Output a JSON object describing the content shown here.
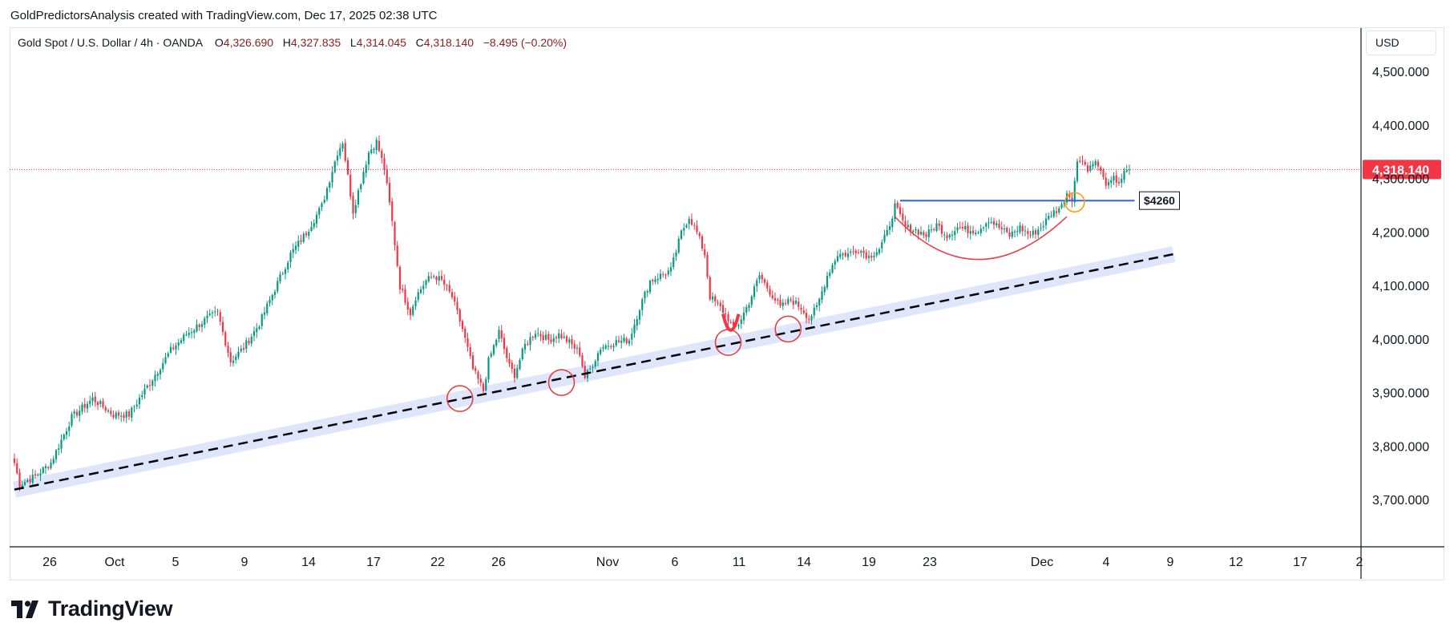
{
  "caption": "GoldPredictorsAnalysis created with TradingView.com, Dec 17, 2025 02:38 UTC",
  "symbol": {
    "name": "Gold Spot / U.S. Dollar",
    "interval": "4h",
    "exchange": "OANDA",
    "open_label": "O",
    "open": "4,326.690",
    "high_label": "H",
    "high": "4,327.835",
    "low_label": "L",
    "low": "4,314.045",
    "close_label": "C",
    "close": "4,318.140",
    "change": "−8.495 (−0.20%)"
  },
  "currency": "USD",
  "brand": "TradingView",
  "colors": {
    "up": "#089981",
    "down": "#f23645",
    "price_tag": "#f23645",
    "resistance": "#2962ff",
    "cup": "#f23645",
    "trend_band": "#dfe6fb",
    "trend_line": "#000000",
    "touch_circle": "#e53935",
    "breakout_circle": "#ff9800"
  },
  "chart_data": {
    "type": "candlestick",
    "interval": "4h",
    "ylim": [
      3600,
      4560
    ],
    "y_ticks": [
      3700,
      3800,
      3900,
      4000,
      4100,
      4200,
      4300,
      4400,
      4500
    ],
    "y_tick_labels": [
      "3,700.000",
      "3,800.000",
      "3,900.000",
      "4,000.000",
      "4,100.000",
      "4,200.000",
      "4,300.000",
      "4,400.000",
      "4,500.000"
    ],
    "x_tick_labels": [
      "26",
      "Oct",
      "5",
      "9",
      "14",
      "17",
      "22",
      "26",
      "Nov",
      "6",
      "11",
      "14",
      "19",
      "23",
      "Dec",
      "4",
      "9",
      "12",
      "17",
      "2"
    ],
    "last_price": 4318.14,
    "last_price_label": "4,318.140",
    "anchors": [
      [
        0,
        3770
      ],
      [
        2,
        3730
      ],
      [
        8,
        3745
      ],
      [
        14,
        3770
      ],
      [
        22,
        3855
      ],
      [
        30,
        3890
      ],
      [
        38,
        3860
      ],
      [
        44,
        3860
      ],
      [
        52,
        3920
      ],
      [
        60,
        3980
      ],
      [
        66,
        4010
      ],
      [
        74,
        4040
      ],
      [
        78,
        4050
      ],
      [
        83,
        3960
      ],
      [
        88,
        3985
      ],
      [
        94,
        4030
      ],
      [
        100,
        4095
      ],
      [
        106,
        4160
      ],
      [
        112,
        4200
      ],
      [
        118,
        4250
      ],
      [
        124,
        4350
      ],
      [
        126,
        4370
      ],
      [
        130,
        4240
      ],
      [
        134,
        4315
      ],
      [
        136,
        4350
      ],
      [
        139,
        4370
      ],
      [
        142,
        4320
      ],
      [
        145,
        4220
      ],
      [
        148,
        4100
      ],
      [
        152,
        4050
      ],
      [
        154,
        4080
      ],
      [
        158,
        4110
      ],
      [
        161,
        4120
      ],
      [
        164,
        4110
      ],
      [
        168,
        4080
      ],
      [
        172,
        4020
      ],
      [
        176,
        3945
      ],
      [
        180,
        3905
      ],
      [
        182,
        3960
      ],
      [
        186,
        4015
      ],
      [
        190,
        3950
      ],
      [
        192,
        3935
      ],
      [
        196,
        3990
      ],
      [
        200,
        4015
      ],
      [
        205,
        4000
      ],
      [
        209,
        4010
      ],
      [
        213,
        3995
      ],
      [
        217,
        3975
      ],
      [
        219,
        3930
      ],
      [
        221,
        3945
      ],
      [
        225,
        3985
      ],
      [
        230,
        3995
      ],
      [
        236,
        4000
      ],
      [
        240,
        4060
      ],
      [
        244,
        4110
      ],
      [
        248,
        4120
      ],
      [
        252,
        4130
      ],
      [
        256,
        4200
      ],
      [
        259,
        4230
      ],
      [
        262,
        4200
      ],
      [
        265,
        4160
      ],
      [
        267,
        4080
      ],
      [
        271,
        4060
      ],
      [
        274,
        4040
      ],
      [
        276,
        4020
      ],
      [
        278,
        4030
      ],
      [
        282,
        4070
      ],
      [
        286,
        4120
      ],
      [
        290,
        4090
      ],
      [
        294,
        4060
      ],
      [
        298,
        4075
      ],
      [
        302,
        4060
      ],
      [
        305,
        4040
      ],
      [
        308,
        4060
      ],
      [
        312,
        4120
      ],
      [
        316,
        4160
      ],
      [
        320,
        4160
      ],
      [
        324,
        4170
      ],
      [
        328,
        4155
      ],
      [
        332,
        4170
      ],
      [
        335,
        4200
      ],
      [
        338,
        4250
      ],
      [
        342,
        4210
      ],
      [
        346,
        4205
      ],
      [
        350,
        4195
      ],
      [
        354,
        4215
      ],
      [
        358,
        4195
      ],
      [
        362,
        4210
      ],
      [
        366,
        4205
      ],
      [
        370,
        4205
      ],
      [
        374,
        4225
      ],
      [
        378,
        4210
      ],
      [
        382,
        4195
      ],
      [
        386,
        4210
      ],
      [
        390,
        4195
      ],
      [
        394,
        4210
      ],
      [
        398,
        4235
      ],
      [
        402,
        4250
      ],
      [
        404,
        4275
      ],
      [
        406,
        4265
      ],
      [
        408,
        4330
      ],
      [
        410,
        4340
      ],
      [
        412,
        4315
      ],
      [
        414,
        4335
      ],
      [
        416,
        4325
      ],
      [
        418,
        4300
      ],
      [
        420,
        4288
      ],
      [
        422,
        4300
      ],
      [
        424,
        4295
      ],
      [
        426,
        4310
      ],
      [
        428,
        4318
      ]
    ],
    "annotations": {
      "support_trendline": {
        "style": "dashed",
        "from": [
          0,
          3720
        ],
        "to": [
          445,
          4160
        ]
      },
      "resistance_line": {
        "label": "$4260",
        "value": 4260,
        "from_bar": 340,
        "to_bar": 430
      },
      "cup_pattern": {
        "from": [
          338,
          4230
        ],
        "bottom": [
          370,
          4150
        ],
        "to": [
          404,
          4230
        ]
      },
      "small_cup": {
        "from": [
          272,
          4048
        ],
        "bottom": [
          275,
          4018
        ],
        "to": [
          278,
          4048
        ]
      },
      "support_touches": [
        [
          171,
          3890
        ],
        [
          210,
          3920
        ],
        [
          274,
          3995
        ],
        [
          297,
          4020
        ]
      ],
      "breakout_touch": [
        407,
        4257
      ]
    }
  }
}
